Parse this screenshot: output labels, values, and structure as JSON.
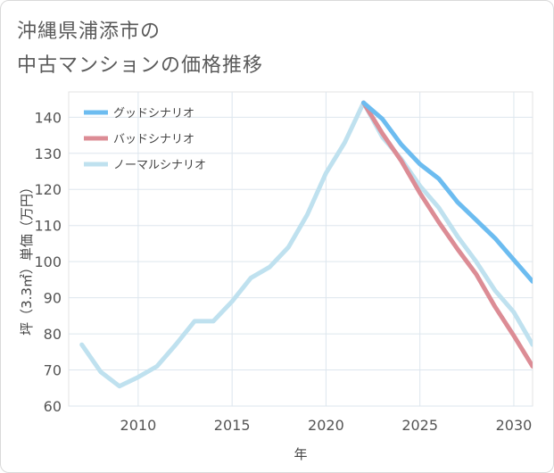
{
  "title": {
    "line1": "沖縄県浦添市の",
    "line2": "中古マンションの価格推移"
  },
  "chart_data": {
    "type": "line",
    "xlabel": "年",
    "ylabel": "坪（3.3㎡）単価（万円）",
    "xlim": [
      2006.3,
      2031
    ],
    "ylim": [
      60,
      147
    ],
    "x_ticks": [
      2010,
      2015,
      2020,
      2025,
      2030
    ],
    "y_ticks": [
      60,
      70,
      80,
      90,
      100,
      110,
      120,
      130,
      140
    ],
    "grid": true,
    "legend_position": "top-left",
    "series": [
      {
        "name": "グッドシナリオ",
        "color": "#6cbcf0",
        "x": [
          2022,
          2023,
          2024,
          2025,
          2026,
          2027,
          2028,
          2029,
          2030,
          2031
        ],
        "y": [
          144,
          139.5,
          132.5,
          127,
          123,
          116.5,
          111.5,
          106.5,
          100.5,
          94.5
        ]
      },
      {
        "name": "バッドシナリオ",
        "color": "#dc8c95",
        "x": [
          2022,
          2023,
          2024,
          2025,
          2026,
          2027,
          2028,
          2029,
          2030,
          2031
        ],
        "y": [
          144,
          135.5,
          128,
          119,
          111,
          103.5,
          96.5,
          87.5,
          79.5,
          71
        ]
      },
      {
        "name": "ノーマルシナリオ",
        "color": "#bfe1ef",
        "x": [
          2007,
          2008,
          2009,
          2010,
          2011,
          2012,
          2013,
          2014,
          2015,
          2016,
          2017,
          2018,
          2019,
          2020,
          2021,
          2022,
          2023,
          2024,
          2025,
          2026,
          2027,
          2028,
          2029,
          2030,
          2031
        ],
        "y": [
          77,
          69.5,
          65.5,
          68,
          71,
          77,
          83.5,
          83.5,
          89,
          95.5,
          98.5,
          104,
          113,
          124.5,
          133,
          144,
          134.5,
          128.5,
          121,
          115,
          107,
          100,
          92,
          86,
          77
        ]
      }
    ]
  }
}
